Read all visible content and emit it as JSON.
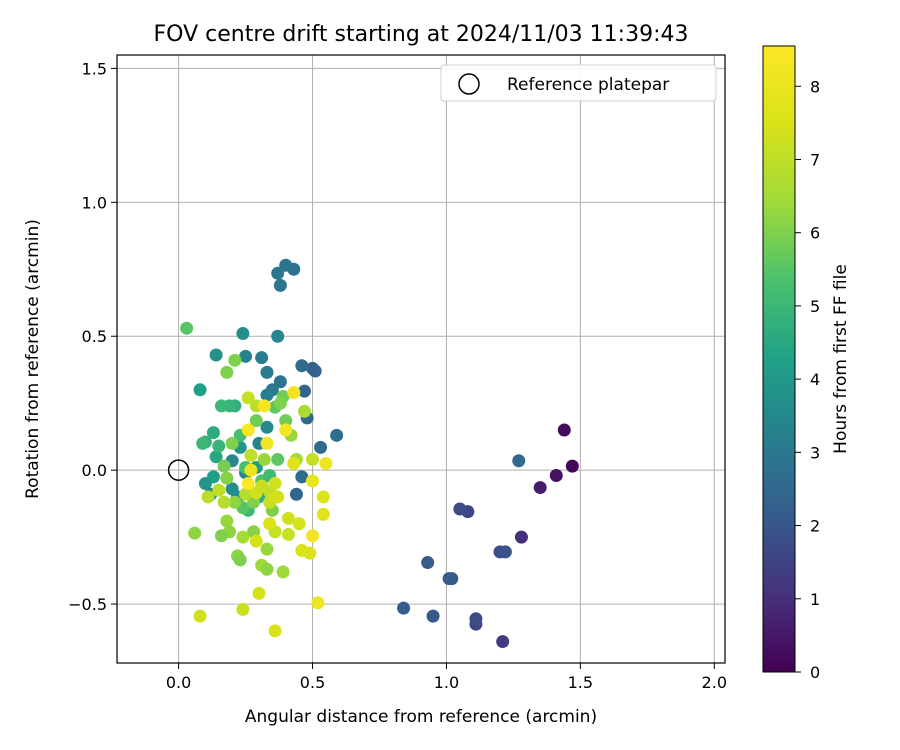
{
  "chart_data": {
    "type": "scatter",
    "title": "FOV centre drift starting at 2024/11/03 11:39:43",
    "xlabel": "Angular distance from reference (arcmin)",
    "ylabel": "Rotation from reference (arcmin)",
    "xlim": [
      -0.23,
      2.04
    ],
    "ylim": [
      -0.72,
      1.55
    ],
    "xticks": [
      0.0,
      0.5,
      1.0,
      1.5,
      2.0
    ],
    "xtick_labels": [
      "0.0",
      "0.5",
      "1.0",
      "1.5",
      "2.0"
    ],
    "yticks": [
      -0.5,
      0.0,
      0.5,
      1.0,
      1.5
    ],
    "ytick_labels": [
      "−0.5",
      "0.0",
      "0.5",
      "1.0",
      "1.5"
    ],
    "grid": true,
    "legend": {
      "position": "upper-right",
      "entries": [
        "Reference platepar"
      ]
    },
    "reference_point": {
      "x": 0.0,
      "y": 0.0
    },
    "colorbar": {
      "label": "Hours from first FF file",
      "min": 0,
      "max": 8.55,
      "ticks": [
        0,
        1,
        2,
        3,
        4,
        5,
        6,
        7,
        8
      ],
      "colormap": "viridis"
    },
    "series": [
      {
        "points": [
          {
            "x": 1.47,
            "y": 0.015,
            "c": 0.1
          },
          {
            "x": 1.44,
            "y": 0.15,
            "c": 0.2
          },
          {
            "x": 1.41,
            "y": -0.02,
            "c": 0.4
          },
          {
            "x": 1.35,
            "y": -0.065,
            "c": 0.6
          },
          {
            "x": 1.28,
            "y": -0.25,
            "c": 1.0
          },
          {
            "x": 1.21,
            "y": -0.64,
            "c": 1.3
          },
          {
            "x": 1.11,
            "y": -0.575,
            "c": 1.6
          },
          {
            "x": 1.11,
            "y": -0.555,
            "c": 1.7
          },
          {
            "x": 1.2,
            "y": -0.305,
            "c": 1.8
          },
          {
            "x": 1.22,
            "y": -0.305,
            "c": 1.9
          },
          {
            "x": 1.08,
            "y": -0.155,
            "c": 1.6
          },
          {
            "x": 1.05,
            "y": -0.145,
            "c": 1.7
          },
          {
            "x": 1.01,
            "y": -0.405,
            "c": 2.0
          },
          {
            "x": 1.02,
            "y": -0.405,
            "c": 2.1
          },
          {
            "x": 0.95,
            "y": -0.545,
            "c": 2.0
          },
          {
            "x": 0.93,
            "y": -0.345,
            "c": 2.1
          },
          {
            "x": 0.84,
            "y": -0.515,
            "c": 2.2
          },
          {
            "x": 1.27,
            "y": 0.035,
            "c": 2.6
          },
          {
            "x": 0.59,
            "y": 0.13,
            "c": 2.7
          },
          {
            "x": 0.53,
            "y": 0.085,
            "c": 2.6
          },
          {
            "x": 0.51,
            "y": 0.37,
            "c": 2.4
          },
          {
            "x": 0.5,
            "y": 0.38,
            "c": 2.3
          },
          {
            "x": 0.48,
            "y": 0.195,
            "c": 2.5
          },
          {
            "x": 0.47,
            "y": 0.295,
            "c": 2.4
          },
          {
            "x": 0.46,
            "y": 0.39,
            "c": 2.6
          },
          {
            "x": 0.46,
            "y": -0.025,
            "c": 2.6
          },
          {
            "x": 0.44,
            "y": -0.09,
            "c": 2.4
          },
          {
            "x": 0.43,
            "y": 0.75,
            "c": 2.8
          },
          {
            "x": 0.4,
            "y": 0.765,
            "c": 2.9
          },
          {
            "x": 0.37,
            "y": 0.735,
            "c": 3.0
          },
          {
            "x": 0.38,
            "y": 0.69,
            "c": 2.9
          },
          {
            "x": 0.37,
            "y": 0.5,
            "c": 3.4
          },
          {
            "x": 0.38,
            "y": 0.33,
            "c": 2.8
          },
          {
            "x": 0.35,
            "y": 0.3,
            "c": 3.0
          },
          {
            "x": 0.33,
            "y": 0.365,
            "c": 3.1
          },
          {
            "x": 0.31,
            "y": 0.42,
            "c": 3.2
          },
          {
            "x": 0.25,
            "y": 0.425,
            "c": 3.3
          },
          {
            "x": 0.24,
            "y": 0.51,
            "c": 3.6
          },
          {
            "x": 0.33,
            "y": 0.16,
            "c": 3.5
          },
          {
            "x": 0.33,
            "y": 0.28,
            "c": 3.2
          },
          {
            "x": 0.3,
            "y": 0.1,
            "c": 3.3
          },
          {
            "x": 0.29,
            "y": 0.01,
            "c": 4.1
          },
          {
            "x": 0.25,
            "y": -0.01,
            "c": 3.4
          },
          {
            "x": 0.23,
            "y": 0.085,
            "c": 3.9
          },
          {
            "x": 0.22,
            "y": -0.1,
            "c": 3.6
          },
          {
            "x": 0.2,
            "y": -0.07,
            "c": 3.7
          },
          {
            "x": 0.2,
            "y": 0.035,
            "c": 3.5
          },
          {
            "x": 0.14,
            "y": 0.43,
            "c": 3.8
          },
          {
            "x": 0.08,
            "y": 0.3,
            "c": 4.2
          },
          {
            "x": 0.13,
            "y": 0.14,
            "c": 4.6
          },
          {
            "x": 0.1,
            "y": 0.105,
            "c": 4.8
          },
          {
            "x": 0.14,
            "y": 0.05,
            "c": 4.5
          },
          {
            "x": 0.13,
            "y": -0.025,
            "c": 4.2
          },
          {
            "x": 0.1,
            "y": -0.05,
            "c": 3.9
          },
          {
            "x": 0.12,
            "y": -0.09,
            "c": 3.7
          },
          {
            "x": 0.15,
            "y": 0.09,
            "c": 4.9
          },
          {
            "x": 0.09,
            "y": 0.1,
            "c": 5.0
          },
          {
            "x": 0.03,
            "y": 0.53,
            "c": 5.5
          },
          {
            "x": 0.21,
            "y": 0.24,
            "c": 4.7
          },
          {
            "x": 0.19,
            "y": 0.24,
            "c": 4.9
          },
          {
            "x": 0.16,
            "y": 0.24,
            "c": 5.0
          },
          {
            "x": 0.23,
            "y": 0.13,
            "c": 5.2
          },
          {
            "x": 0.25,
            "y": 0.01,
            "c": 5.3
          },
          {
            "x": 0.3,
            "y": -0.1,
            "c": 4.6
          },
          {
            "x": 0.26,
            "y": -0.15,
            "c": 5.0
          },
          {
            "x": 0.24,
            "y": -0.14,
            "c": 5.5
          },
          {
            "x": 0.31,
            "y": -0.04,
            "c": 5.4
          },
          {
            "x": 0.34,
            "y": -0.02,
            "c": 5.1
          },
          {
            "x": 0.36,
            "y": 0.235,
            "c": 5.6
          },
          {
            "x": 0.37,
            "y": 0.04,
            "c": 5.6
          },
          {
            "x": 0.4,
            "y": 0.185,
            "c": 5.8
          },
          {
            "x": 0.39,
            "y": 0.275,
            "c": 5.8
          },
          {
            "x": 0.38,
            "y": 0.25,
            "c": 6.0
          },
          {
            "x": 0.21,
            "y": 0.41,
            "c": 6.0
          },
          {
            "x": 0.18,
            "y": 0.365,
            "c": 6.0
          },
          {
            "x": 0.2,
            "y": 0.1,
            "c": 6.0
          },
          {
            "x": 0.17,
            "y": 0.015,
            "c": 5.9
          },
          {
            "x": 0.18,
            "y": -0.03,
            "c": 6.1
          },
          {
            "x": 0.21,
            "y": -0.12,
            "c": 6.2
          },
          {
            "x": 0.28,
            "y": -0.12,
            "c": 6.0
          },
          {
            "x": 0.29,
            "y": 0.185,
            "c": 5.8
          },
          {
            "x": 0.32,
            "y": 0.04,
            "c": 6.3
          },
          {
            "x": 0.35,
            "y": -0.15,
            "c": 6.0
          },
          {
            "x": 0.42,
            "y": 0.13,
            "c": 6.3
          },
          {
            "x": 0.44,
            "y": 0.04,
            "c": 6.5
          },
          {
            "x": 0.47,
            "y": 0.22,
            "c": 6.6
          },
          {
            "x": 0.22,
            "y": -0.32,
            "c": 6.2
          },
          {
            "x": 0.23,
            "y": -0.335,
            "c": 6.0
          },
          {
            "x": 0.28,
            "y": -0.23,
            "c": 6.1
          },
          {
            "x": 0.33,
            "y": -0.295,
            "c": 6.3
          },
          {
            "x": 0.31,
            "y": -0.355,
            "c": 6.4
          },
          {
            "x": 0.33,
            "y": -0.37,
            "c": 6.2
          },
          {
            "x": 0.39,
            "y": -0.38,
            "c": 6.4
          },
          {
            "x": 0.18,
            "y": -0.19,
            "c": 6.3
          },
          {
            "x": 0.19,
            "y": -0.23,
            "c": 6.2
          },
          {
            "x": 0.24,
            "y": -0.25,
            "c": 6.5
          },
          {
            "x": 0.16,
            "y": -0.245,
            "c": 6.0
          },
          {
            "x": 0.06,
            "y": -0.235,
            "c": 6.2
          },
          {
            "x": 0.17,
            "y": -0.12,
            "c": 6.8
          },
          {
            "x": 0.15,
            "y": -0.075,
            "c": 7.0
          },
          {
            "x": 0.11,
            "y": -0.1,
            "c": 6.9
          },
          {
            "x": 0.25,
            "y": -0.09,
            "c": 6.8
          },
          {
            "x": 0.29,
            "y": 0.24,
            "c": 6.9
          },
          {
            "x": 0.26,
            "y": 0.27,
            "c": 7.1
          },
          {
            "x": 0.27,
            "y": 0.055,
            "c": 7.0
          },
          {
            "x": 0.29,
            "y": -0.085,
            "c": 7.3
          },
          {
            "x": 0.31,
            "y": -0.06,
            "c": 7.2
          },
          {
            "x": 0.34,
            "y": -0.08,
            "c": 7.1
          },
          {
            "x": 0.34,
            "y": -0.12,
            "c": 7.2
          },
          {
            "x": 0.36,
            "y": -0.05,
            "c": 7.3
          },
          {
            "x": 0.37,
            "y": -0.1,
            "c": 7.4
          },
          {
            "x": 0.36,
            "y": -0.23,
            "c": 7.1
          },
          {
            "x": 0.34,
            "y": -0.2,
            "c": 7.6
          },
          {
            "x": 0.29,
            "y": -0.265,
            "c": 7.4
          },
          {
            "x": 0.41,
            "y": -0.24,
            "c": 7.2
          },
          {
            "x": 0.41,
            "y": -0.18,
            "c": 7.3
          },
          {
            "x": 0.45,
            "y": -0.2,
            "c": 7.4
          },
          {
            "x": 0.46,
            "y": -0.3,
            "c": 7.5
          },
          {
            "x": 0.49,
            "y": -0.31,
            "c": 7.6
          },
          {
            "x": 0.5,
            "y": -0.245,
            "c": 8.3
          },
          {
            "x": 0.5,
            "y": -0.04,
            "c": 8.0
          },
          {
            "x": 0.54,
            "y": -0.1,
            "c": 7.6
          },
          {
            "x": 0.54,
            "y": -0.165,
            "c": 7.8
          },
          {
            "x": 0.52,
            "y": -0.495,
            "c": 8.1
          },
          {
            "x": 0.3,
            "y": -0.46,
            "c": 7.4
          },
          {
            "x": 0.24,
            "y": -0.52,
            "c": 7.2
          },
          {
            "x": 0.36,
            "y": -0.6,
            "c": 7.5
          },
          {
            "x": 0.08,
            "y": -0.545,
            "c": 7.3
          },
          {
            "x": 0.5,
            "y": 0.04,
            "c": 7.1
          },
          {
            "x": 0.55,
            "y": 0.025,
            "c": 8.1
          },
          {
            "x": 0.43,
            "y": 0.025,
            "c": 7.7
          },
          {
            "x": 0.33,
            "y": 0.1,
            "c": 8.2
          },
          {
            "x": 0.4,
            "y": 0.15,
            "c": 8.3
          },
          {
            "x": 0.26,
            "y": 0.15,
            "c": 8.4
          },
          {
            "x": 0.43,
            "y": 0.29,
            "c": 8.2
          },
          {
            "x": 0.32,
            "y": 0.24,
            "c": 8.3
          },
          {
            "x": 0.27,
            "y": 0.0,
            "c": 8.0
          },
          {
            "x": 0.26,
            "y": -0.05,
            "c": 8.5
          }
        ]
      }
    ]
  }
}
